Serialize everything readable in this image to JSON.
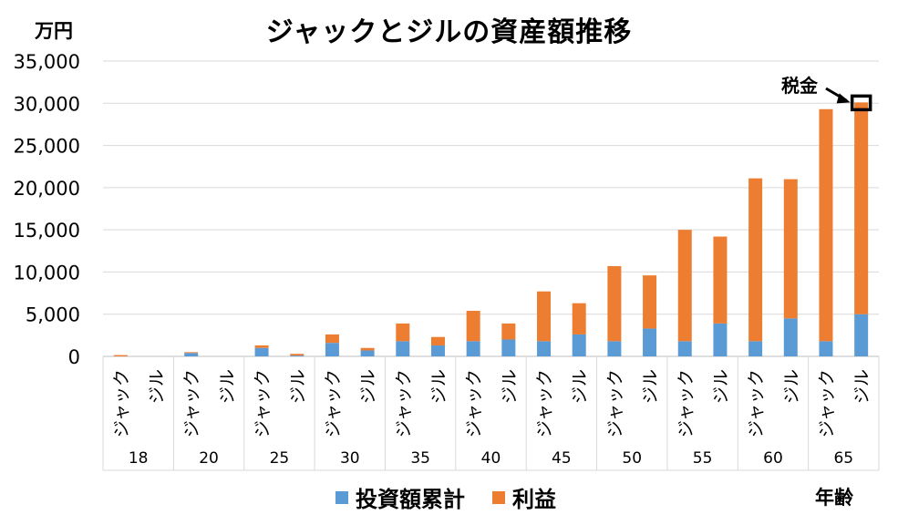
{
  "chart_data": {
    "type": "bar",
    "stacked": true,
    "title": "ジャックとジルの資産額推移",
    "ylabel": "万円",
    "xlabel": "年齢",
    "ylim": [
      0,
      35000
    ],
    "yticks": [
      "0",
      "5,000",
      "10,000",
      "15,000",
      "20,000",
      "25,000",
      "30,000",
      "35,000"
    ],
    "grid": true,
    "legend_position": "bottom",
    "ages": [
      "18",
      "20",
      "25",
      "30",
      "35",
      "40",
      "45",
      "50",
      "55",
      "60",
      "65"
    ],
    "people": [
      "ジャック",
      "ジル"
    ],
    "categories": [
      "18 ジャック",
      "18 ジル",
      "20 ジャック",
      "20 ジル",
      "25 ジャック",
      "25 ジル",
      "30 ジャック",
      "30 ジル",
      "35 ジャック",
      "35 ジル",
      "40 ジャック",
      "40 ジル",
      "45 ジャック",
      "45 ジル",
      "50 ジャック",
      "50 ジル",
      "55 ジャック",
      "55 ジル",
      "60 ジャック",
      "60 ジル",
      "65 ジャック",
      "65 ジル"
    ],
    "series": [
      {
        "name": "投資額累計",
        "color": "#5B9BD5",
        "values": [
          0,
          0,
          400,
          0,
          1000,
          100,
          1600,
          700,
          1800,
          1300,
          1800,
          2000,
          1800,
          2600,
          1800,
          3300,
          1800,
          3900,
          1800,
          4500,
          1800,
          5000
        ]
      },
      {
        "name": "利益",
        "color": "#ED7D31",
        "values": [
          150,
          0,
          100,
          0,
          300,
          200,
          1000,
          300,
          2100,
          1000,
          3600,
          1900,
          5900,
          3700,
          8900,
          6300,
          13200,
          10300,
          19300,
          16500,
          27500,
          25100
        ]
      }
    ],
    "annotation": {
      "text": "税金",
      "target": "65 ジル"
    }
  }
}
